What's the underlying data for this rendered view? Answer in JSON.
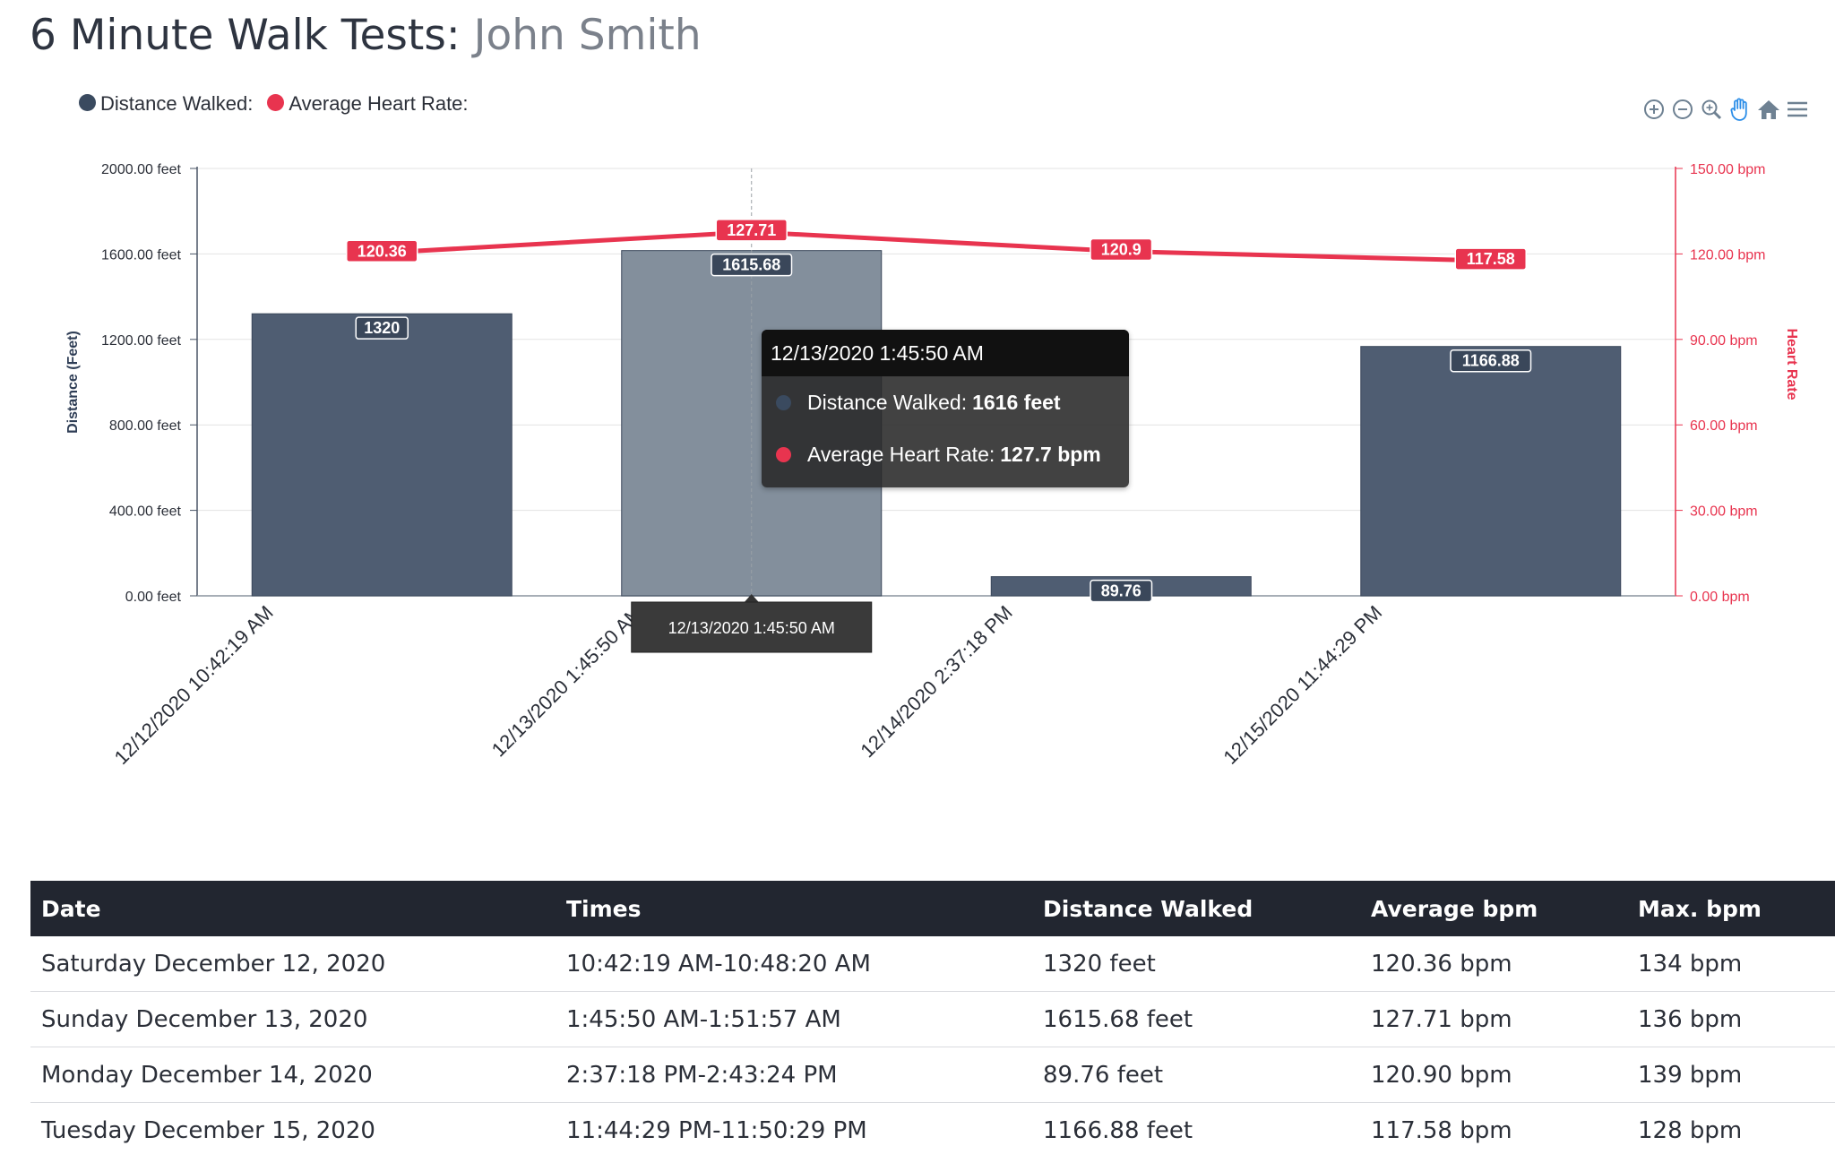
{
  "header": {
    "title_prefix": "6 Minute Walk Tests:",
    "patient_name": "John Smith"
  },
  "legend": [
    {
      "label": "Distance Walked:",
      "color": "#3a4a5f"
    },
    {
      "label": "Average Heart Rate:",
      "color": "#e8344f"
    }
  ],
  "toolbar": [
    "zoom-in-icon",
    "zoom-out-icon",
    "selection-zoom-icon",
    "pan-hand-icon",
    "reset-home-icon",
    "menu-icon"
  ],
  "chart_data": {
    "type": "bar",
    "categories": [
      "12/12/2020 10:42:19 AM",
      "12/13/2020 1:45:50 AM",
      "12/14/2020 2:37:18 PM",
      "12/15/2020 11:44:29 PM"
    ],
    "series": [
      {
        "name": "Distance Walked",
        "type": "bar",
        "axis": "left",
        "values": [
          1320,
          1615.68,
          89.76,
          1166.88
        ],
        "labels": [
          "1320",
          "1615.68",
          "89.76",
          "1166.88"
        ],
        "color": "#4f5d72"
      },
      {
        "name": "Average Heart Rate",
        "type": "line",
        "axis": "right",
        "values": [
          120.36,
          127.71,
          120.9,
          117.58
        ],
        "labels": [
          "120.36",
          "127.71",
          "120.9",
          "117.58"
        ],
        "color": "#e8344f"
      }
    ],
    "y_left": {
      "label": "Distance (Feet)",
      "range": [
        0,
        2000
      ],
      "ticks": [
        "0.00 feet",
        "400.00 feet",
        "800.00 feet",
        "1200.00 feet",
        "1600.00 feet",
        "2000.00 feet"
      ],
      "tick_values": [
        0,
        400,
        800,
        1200,
        1600,
        2000
      ]
    },
    "y_right": {
      "label": "Heart Rate",
      "range": [
        0,
        150
      ],
      "ticks": [
        "0.00 bpm",
        "30.00 bpm",
        "60.00 bpm",
        "90.00 bpm",
        "120.00 bpm",
        "150.00 bpm"
      ],
      "tick_values": [
        0,
        30,
        60,
        90,
        120,
        150
      ],
      "color": "#e8344f"
    },
    "grid": true,
    "legend_position": "top-left",
    "highlighted_index": 1
  },
  "tooltip": {
    "title": "12/13/2020 1:45:50 AM",
    "rows": [
      {
        "label": "Distance Walked:",
        "value": "1616 feet",
        "color": "#3a4a5f"
      },
      {
        "label": "Average Heart Rate:",
        "value": "127.7 bpm",
        "color": "#e8344f"
      }
    ]
  },
  "crosshair_label": "12/13/2020 1:45:50 AM",
  "table": {
    "headers": [
      "Date",
      "Times",
      "Distance Walked",
      "Average bpm",
      "Max. bpm"
    ],
    "rows": [
      [
        "Saturday December 12, 2020",
        "10:42:19 AM-10:48:20 AM",
        "1320 feet",
        "120.36 bpm",
        "134 bpm"
      ],
      [
        "Sunday December 13, 2020",
        "1:45:50 AM-1:51:57 AM",
        "1615.68 feet",
        "127.71 bpm",
        "136 bpm"
      ],
      [
        "Monday December 14, 2020",
        "2:37:18 PM-2:43:24 PM",
        "89.76 feet",
        "120.90 bpm",
        "139 bpm"
      ],
      [
        "Tuesday December 15, 2020",
        "11:44:29 PM-11:50:29 PM",
        "1166.88 feet",
        "117.58 bpm",
        "128 bpm"
      ]
    ]
  }
}
